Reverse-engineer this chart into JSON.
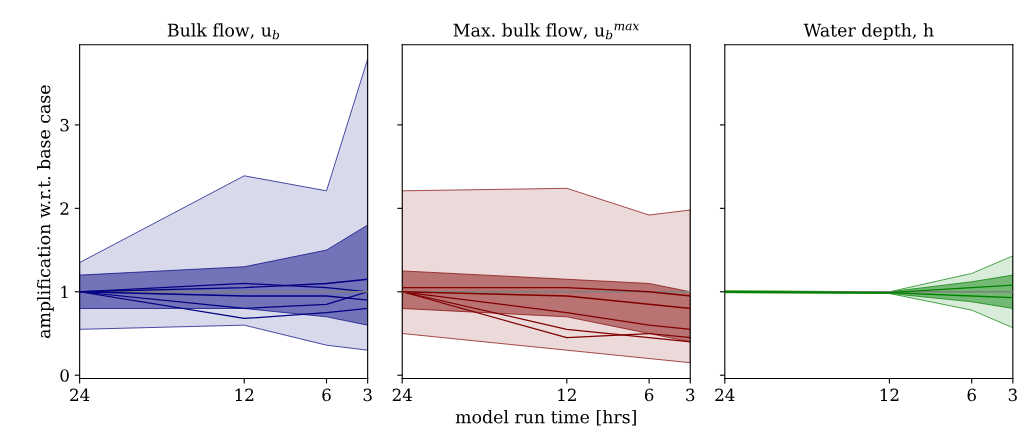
{
  "chart_data": [
    {
      "type": "line",
      "title": "Bulk flow, u$_{b}$",
      "ylabel": "amplification w.r.t. base case",
      "x": [
        24,
        12,
        6,
        3
      ],
      "xlim": [
        24,
        3
      ],
      "xticks": [
        24,
        12,
        6,
        3
      ],
      "ylim": [
        -0.04,
        3.96
      ],
      "yticks": [
        0,
        1,
        2,
        3
      ],
      "grid": false,
      "legend": false,
      "ref_lines": [
        {
          "axis": "y",
          "value": 1,
          "color": "#808080"
        }
      ],
      "series": [
        {
          "color": "#000080",
          "values": [
            1.0,
            1.05,
            1.1,
            1.15
          ],
          "lower": [
            0.55,
            0.6,
            0.36,
            0.3
          ],
          "upper": [
            1.35,
            2.39,
            2.21,
            3.79
          ]
        },
        {
          "color": "#000080",
          "values": [
            1.0,
            0.95,
            0.95,
            0.9
          ],
          "lower": [
            0.8,
            0.8,
            0.7,
            0.6
          ],
          "upper": [
            1.2,
            1.3,
            1.5,
            1.8
          ]
        },
        {
          "color": "#000080",
          "values": [
            1.0,
            0.68,
            0.75,
            0.8
          ]
        },
        {
          "color": "#000080",
          "values": [
            1.0,
            0.8,
            0.85,
            1.0
          ]
        },
        {
          "color": "#000080",
          "values": [
            1.0,
            1.1,
            1.05,
            1.0
          ]
        }
      ]
    },
    {
      "type": "line",
      "title": "Max. bulk flow, u$_{b}$$^{max}$",
      "xlabel": "model run time [hrs]",
      "x": [
        24,
        12,
        6,
        3
      ],
      "xlim": [
        24,
        3
      ],
      "xticks": [
        24,
        12,
        6,
        3
      ],
      "ylim": [
        -0.04,
        3.96
      ],
      "yticks": [
        0,
        1,
        2,
        3
      ],
      "tick_labels": "x",
      "grid": false,
      "legend": false,
      "ref_lines": [
        {
          "axis": "y",
          "value": 1,
          "color": "#808080"
        }
      ],
      "series": [
        {
          "color": "#800000",
          "values": [
            1.05,
            1.05,
            1.0,
            0.95
          ],
          "lower": [
            0.5,
            0.3,
            0.2,
            0.15
          ],
          "upper": [
            2.21,
            2.24,
            1.92,
            1.98
          ]
        },
        {
          "color": "#800000",
          "values": [
            1.0,
            0.95,
            0.85,
            0.8
          ],
          "lower": [
            0.8,
            0.7,
            0.5,
            0.4
          ],
          "upper": [
            1.25,
            1.15,
            1.1,
            1.0
          ]
        },
        {
          "color": "#800000",
          "values": [
            1.0,
            0.55,
            0.45,
            0.4
          ]
        },
        {
          "color": "#800000",
          "values": [
            1.0,
            0.45,
            0.5,
            0.45
          ]
        },
        {
          "color": "#800000",
          "values": [
            1.0,
            0.75,
            0.6,
            0.55
          ]
        }
      ]
    },
    {
      "type": "line",
      "title": "Water depth, h",
      "x": [
        24,
        12,
        6,
        3
      ],
      "xlim": [
        24,
        3
      ],
      "xticks": [
        24,
        12,
        6,
        3
      ],
      "ylim": [
        -0.04,
        3.96
      ],
      "yticks": [
        0,
        1,
        2,
        3
      ],
      "tick_labels": "x",
      "grid": false,
      "legend": false,
      "ref_lines": [
        {
          "axis": "y",
          "value": 1,
          "color": "#808080"
        }
      ],
      "series": [
        {
          "color": "#008000",
          "values": [
            1.0,
            0.99,
            1.05,
            1.08
          ],
          "lower": [
            0.99,
            0.98,
            0.78,
            0.57
          ],
          "upper": [
            1.01,
            1.0,
            1.22,
            1.43
          ]
        },
        {
          "color": "#008000",
          "values": [
            1.0,
            0.99,
            0.95,
            0.93
          ],
          "lower": [
            0.99,
            0.98,
            0.88,
            0.8
          ],
          "upper": [
            1.01,
            1.0,
            1.12,
            1.2
          ]
        }
      ]
    }
  ]
}
